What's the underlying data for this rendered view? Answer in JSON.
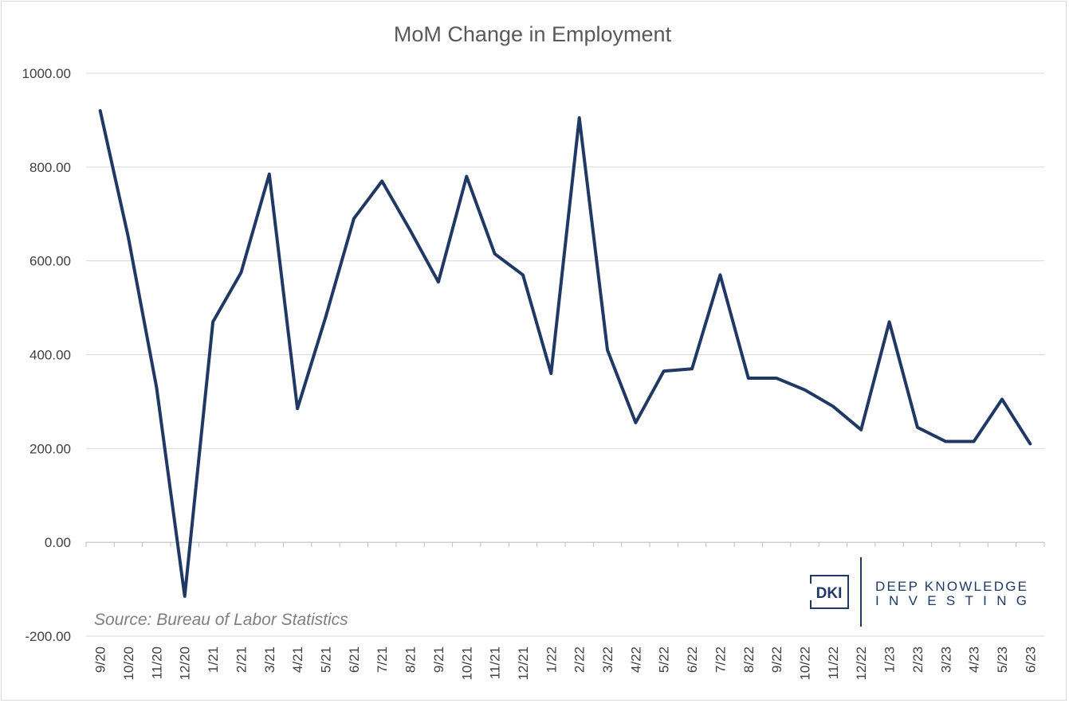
{
  "chart_data": {
    "type": "line",
    "title": "MoM Change in Employment",
    "xlabel": "",
    "ylabel": "",
    "ylim": [
      -200,
      1000
    ],
    "y_ticks": [
      "1000.00",
      "800.00",
      "600.00",
      "400.00",
      "200.00",
      "0.00",
      "-200.00"
    ],
    "y_tick_values": [
      1000,
      800,
      600,
      400,
      200,
      0,
      -200
    ],
    "grid": "horizontal",
    "legend": "none",
    "line_color": "#203864",
    "categories": [
      "9/20",
      "10/20",
      "11/20",
      "12/20",
      "1/21",
      "2/21",
      "3/21",
      "4/21",
      "5/21",
      "6/21",
      "7/21",
      "8/21",
      "9/21",
      "10/21",
      "11/21",
      "12/21",
      "1/22",
      "2/22",
      "3/22",
      "4/22",
      "5/22",
      "6/22",
      "7/22",
      "8/22",
      "9/22",
      "10/22",
      "11/22",
      "12/22",
      "1/23",
      "2/23",
      "3/23",
      "4/23",
      "5/23",
      "6/23"
    ],
    "series": [
      {
        "values": [
          920,
          650,
          330,
          -115,
          470,
          575,
          785,
          285,
          480,
          690,
          770,
          665,
          555,
          780,
          615,
          570,
          360,
          905,
          410,
          255,
          365,
          370,
          570,
          350,
          350,
          325,
          290,
          240,
          470,
          245,
          215,
          215,
          305,
          210
        ]
      }
    ],
    "annotation": "Source: Bureau of Labor Statistics"
  },
  "logo": {
    "mark": "DKI",
    "line1": "DEEP KNOWLEDGE",
    "line2": "INVESTING",
    "color": "#1f3864"
  }
}
